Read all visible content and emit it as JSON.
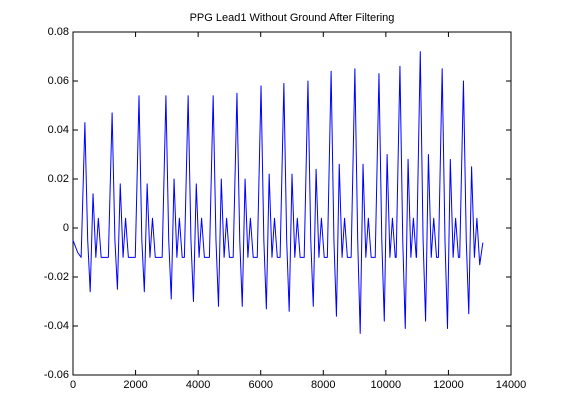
{
  "chart_data": {
    "type": "line",
    "title": "PPG Lead1 Without Ground After Filtering",
    "x": [
      0,
      150,
      260,
      380,
      470,
      550,
      640,
      730,
      810,
      900,
      1130,
      1250,
      1340,
      1420,
      1510,
      1600,
      1680,
      1770,
      1990,
      2110,
      2200,
      2280,
      2370,
      2460,
      2540,
      2630,
      2850,
      2970,
      3060,
      3140,
      3230,
      3320,
      3400,
      3490,
      3560,
      3680,
      3770,
      3850,
      3940,
      4030,
      4110,
      4200,
      4360,
      4480,
      4570,
      4650,
      4740,
      4830,
      4910,
      5000,
      5120,
      5240,
      5330,
      5410,
      5500,
      5590,
      5670,
      5760,
      5890,
      6010,
      6100,
      6180,
      6270,
      6360,
      6440,
      6530,
      6620,
      6740,
      6830,
      6910,
      7000,
      7090,
      7170,
      7260,
      7390,
      7510,
      7600,
      7680,
      7770,
      7860,
      7940,
      8030,
      8130,
      8250,
      8340,
      8420,
      8510,
      8600,
      8680,
      8770,
      8890,
      9010,
      9100,
      9180,
      9270,
      9360,
      9440,
      9530,
      9660,
      9780,
      9870,
      9950,
      10040,
      10130,
      10210,
      10300,
      10330,
      10450,
      10540,
      10620,
      10710,
      10800,
      10880,
      10970,
      10980,
      11100,
      11190,
      11270,
      11360,
      11450,
      11530,
      11620,
      11680,
      11800,
      11890,
      11970,
      12060,
      12150,
      12230,
      12320,
      12360,
      12480,
      12570,
      12650,
      12740,
      12830,
      12910,
      13000,
      13100
    ],
    "series": [
      {
        "name": "PPG",
        "color": "#0000ff",
        "values": [
          -0.005,
          -0.01,
          -0.012,
          0.043,
          -0.005,
          -0.026,
          0.014,
          -0.012,
          0.004,
          -0.012,
          -0.012,
          0.047,
          -0.005,
          -0.025,
          0.018,
          -0.012,
          0.004,
          -0.012,
          -0.012,
          0.054,
          -0.005,
          -0.026,
          0.018,
          -0.012,
          0.004,
          -0.012,
          -0.012,
          0.054,
          -0.005,
          -0.029,
          0.02,
          -0.012,
          0.004,
          -0.012,
          -0.012,
          0.054,
          -0.005,
          -0.03,
          0.018,
          -0.012,
          0.004,
          -0.012,
          -0.012,
          0.054,
          -0.005,
          -0.032,
          0.02,
          -0.012,
          0.004,
          -0.012,
          -0.012,
          0.055,
          -0.005,
          -0.032,
          0.02,
          -0.012,
          0.004,
          -0.012,
          -0.012,
          0.058,
          -0.005,
          -0.033,
          0.022,
          -0.012,
          0.004,
          -0.012,
          -0.012,
          0.059,
          -0.005,
          -0.034,
          0.022,
          -0.012,
          0.004,
          -0.012,
          -0.012,
          0.06,
          -0.005,
          -0.032,
          0.024,
          -0.012,
          0.004,
          -0.012,
          -0.012,
          0.064,
          -0.005,
          -0.036,
          0.026,
          -0.012,
          0.004,
          -0.012,
          -0.012,
          0.065,
          -0.005,
          -0.043,
          0.026,
          -0.012,
          0.004,
          -0.012,
          -0.012,
          0.063,
          -0.005,
          -0.038,
          0.03,
          -0.012,
          0.004,
          -0.012,
          -0.012,
          0.066,
          -0.005,
          -0.041,
          0.028,
          -0.012,
          0.004,
          -0.012,
          -0.012,
          0.072,
          -0.005,
          -0.038,
          0.03,
          -0.012,
          0.004,
          -0.012,
          -0.012,
          0.065,
          -0.005,
          -0.041,
          0.028,
          -0.012,
          0.004,
          -0.012,
          -0.012,
          0.06,
          -0.005,
          -0.035,
          0.025,
          -0.012,
          0.004,
          -0.015,
          -0.006
        ]
      }
    ],
    "xlim": [
      0,
      14000
    ],
    "xticks": [
      0,
      2000,
      4000,
      6000,
      8000,
      10000,
      12000,
      14000
    ],
    "ylim": [
      -0.06,
      0.08
    ],
    "yticks": [
      -0.06,
      -0.04,
      -0.02,
      0,
      0.02,
      0.04,
      0.06,
      0.08
    ],
    "grid": false
  }
}
